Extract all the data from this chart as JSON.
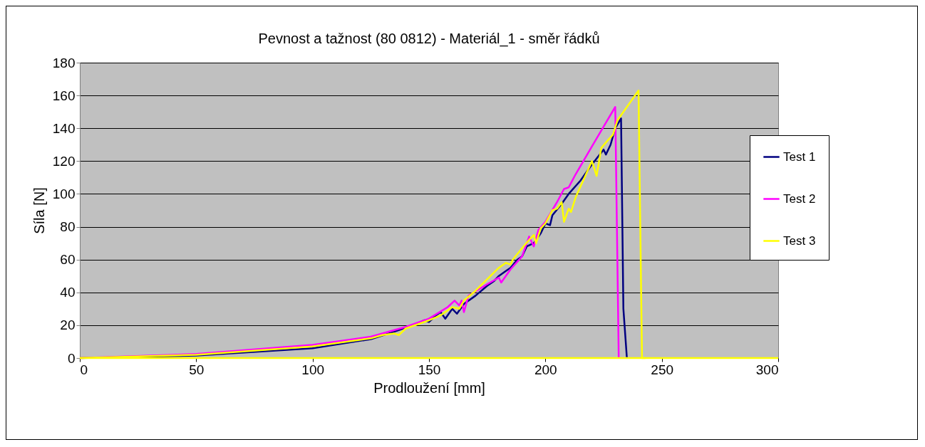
{
  "chart_data": {
    "type": "line",
    "title": "Pevnost a tažnost (80 0812) - Materiál_1 - směr řádků",
    "xlabel": "Prodloužení [mm]",
    "ylabel": "Síla [N]",
    "xlim": [
      0,
      300
    ],
    "xticks": [
      0,
      50,
      100,
      150,
      200,
      250,
      300
    ],
    "ylim": [
      0,
      180
    ],
    "yticks": [
      0,
      20,
      40,
      60,
      80,
      100,
      120,
      140,
      160,
      180
    ],
    "grid": "y",
    "legend": "right",
    "line_style": "solid",
    "marker": "none",
    "ref_lines": [
      {
        "axis": "y",
        "value": 0,
        "color": "#ffff00"
      }
    ],
    "series": [
      {
        "name": "Test 1",
        "color": "#000080",
        "x": [
          0,
          50,
          100,
          125,
          135,
          145,
          148,
          150,
          153,
          155,
          157,
          160,
          162,
          165,
          170,
          175,
          178,
          180,
          183,
          185,
          188,
          190,
          192,
          195,
          198,
          200,
          202,
          203,
          207,
          210,
          215,
          220,
          225,
          226,
          228,
          230,
          232.5,
          233.5,
          235
        ],
        "values": [
          0,
          1.5,
          6,
          11.5,
          16,
          21,
          23,
          22,
          26,
          28,
          24,
          30,
          27,
          33,
          38,
          44,
          47,
          50,
          53,
          55,
          60,
          62,
          68,
          70,
          76,
          82,
          81,
          87,
          94,
          100,
          108,
          118,
          127,
          124,
          130,
          140,
          146,
          30,
          0
        ]
      },
      {
        "name": "Test 2",
        "color": "#ff00ff",
        "x": [
          0,
          50,
          100,
          125,
          140,
          150,
          158,
          161,
          163,
          164,
          165,
          167,
          175,
          180,
          181,
          185,
          190,
          193,
          195,
          197,
          200,
          205,
          208,
          210,
          213,
          220,
          225,
          230,
          231.5
        ],
        "values": [
          0,
          2.5,
          8,
          13,
          19,
          24,
          31,
          35,
          32,
          35,
          28,
          38,
          45,
          49,
          46,
          54,
          62,
          74,
          68,
          78,
          83,
          95,
          103,
          104,
          112,
          129,
          141,
          153,
          0
        ]
      },
      {
        "name": "Test 3",
        "color": "#ffff00",
        "x": [
          0,
          50,
          100,
          125,
          130,
          135,
          137,
          140,
          150,
          155,
          160,
          163,
          165,
          170,
          180,
          183,
          185,
          186,
          190,
          193,
          195,
          196,
          198,
          200,
          203,
          205,
          207,
          208,
          210,
          211,
          213,
          220,
          222,
          224,
          227,
          229,
          231,
          240,
          241.5,
          243
        ],
        "values": [
          0,
          2,
          7,
          12,
          14,
          15,
          14,
          18,
          23,
          26,
          31,
          30,
          35,
          41,
          55,
          58,
          57,
          60,
          67,
          72,
          75,
          70,
          79,
          82,
          90,
          91,
          95,
          83,
          91,
          89,
          98,
          120,
          111,
          128,
          133,
          136,
          145,
          163,
          0,
          0
        ]
      }
    ]
  }
}
